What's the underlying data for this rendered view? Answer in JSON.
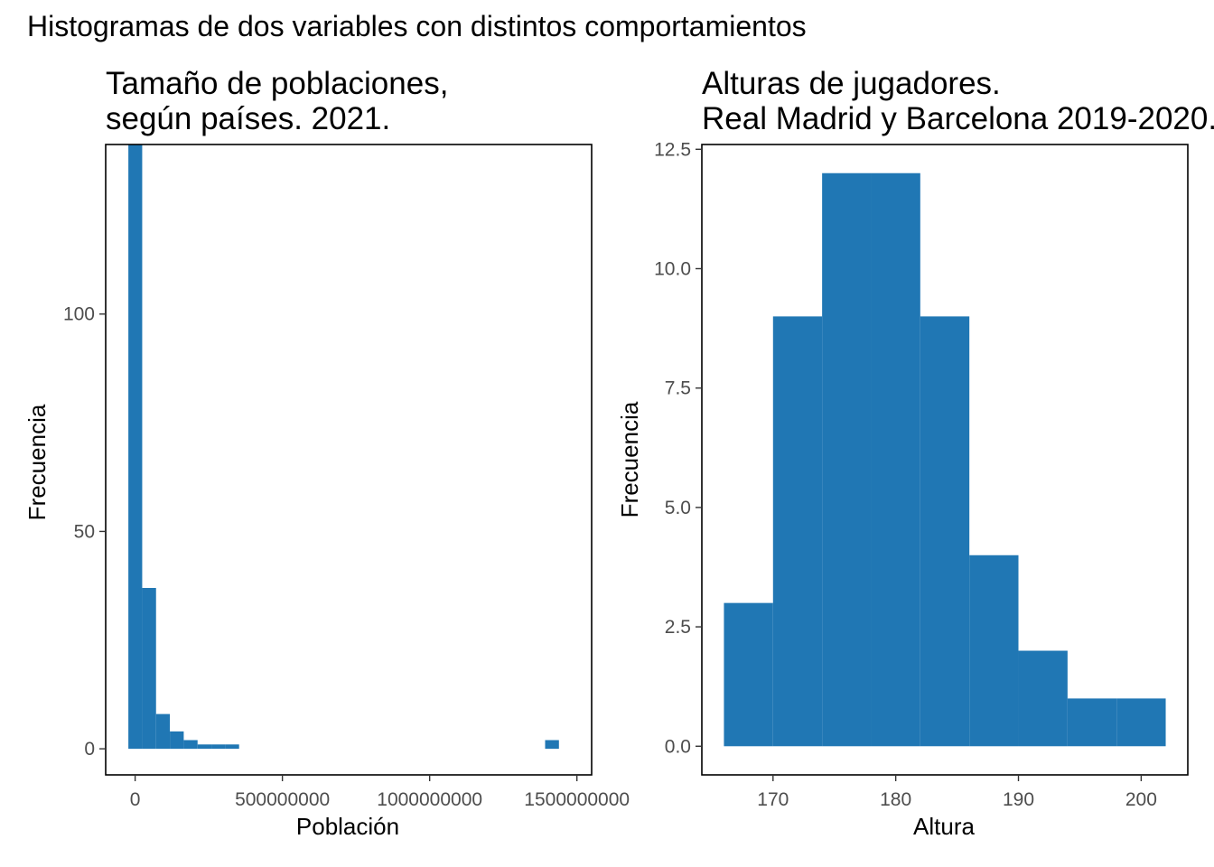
{
  "title": "Histogramas de dos variables con distintos comportamientos",
  "panels": [
    {
      "title_line1": "Tamaño de poblaciones,",
      "title_line2": "según países. 2021."
    },
    {
      "title_line1": "Alturas de jugadores.",
      "title_line2": "Real Madrid y Barcelona 2019-2020."
    }
  ],
  "colors": {
    "bar": "#2077B4",
    "axis": "#000000",
    "tick_text": "#4d4d4d"
  },
  "chart_data": [
    {
      "type": "bar",
      "title": "Tamaño de poblaciones, según países. 2021.",
      "xlabel": "Población",
      "ylabel": "Frecuencia",
      "xlim": [
        -100000000,
        1550000000
      ],
      "ylim": [
        -6,
        139
      ],
      "x_ticks": [
        0,
        500000000,
        1000000000,
        1500000000
      ],
      "x_tick_labels": [
        "0",
        "500000000",
        "1000000000",
        "1500000000"
      ],
      "y_ticks": [
        0,
        50,
        100
      ],
      "y_tick_labels": [
        "0",
        "50",
        "100"
      ],
      "grid": false,
      "bins": [
        {
          "x0": -23000000,
          "x1": 24000000,
          "count": 139
        },
        {
          "x0": 24000000,
          "x1": 71000000,
          "count": 37
        },
        {
          "x0": 71000000,
          "x1": 118000000,
          "count": 8
        },
        {
          "x0": 118000000,
          "x1": 165000000,
          "count": 4
        },
        {
          "x0": 165000000,
          "x1": 212000000,
          "count": 2
        },
        {
          "x0": 212000000,
          "x1": 259000000,
          "count": 1
        },
        {
          "x0": 259000000,
          "x1": 306000000,
          "count": 1
        },
        {
          "x0": 306000000,
          "x1": 353000000,
          "count": 1
        },
        {
          "x0": 1392000000,
          "x1": 1439000000,
          "count": 2
        }
      ]
    },
    {
      "type": "bar",
      "title": "Alturas de jugadores. Real Madrid y Barcelona 2019-2020.",
      "xlabel": "Altura",
      "ylabel": "Frecuencia",
      "xlim": [
        164.2,
        203.8
      ],
      "ylim": [
        -0.6,
        12.6
      ],
      "x_ticks": [
        170,
        180,
        190,
        200
      ],
      "x_tick_labels": [
        "170",
        "180",
        "190",
        "200"
      ],
      "y_ticks": [
        0,
        2.5,
        5,
        7.5,
        10,
        12.5
      ],
      "y_tick_labels": [
        "0.0",
        "2.5",
        "5.0",
        "7.5",
        "10.0",
        "12.5"
      ],
      "grid": false,
      "bins": [
        {
          "x0": 166,
          "x1": 170,
          "count": 3
        },
        {
          "x0": 170,
          "x1": 174,
          "count": 9
        },
        {
          "x0": 174,
          "x1": 178,
          "count": 12
        },
        {
          "x0": 178,
          "x1": 182,
          "count": 12
        },
        {
          "x0": 182,
          "x1": 186,
          "count": 9
        },
        {
          "x0": 186,
          "x1": 190,
          "count": 4
        },
        {
          "x0": 190,
          "x1": 194,
          "count": 2
        },
        {
          "x0": 194,
          "x1": 198,
          "count": 1
        },
        {
          "x0": 198,
          "x1": 202,
          "count": 1
        }
      ]
    }
  ]
}
